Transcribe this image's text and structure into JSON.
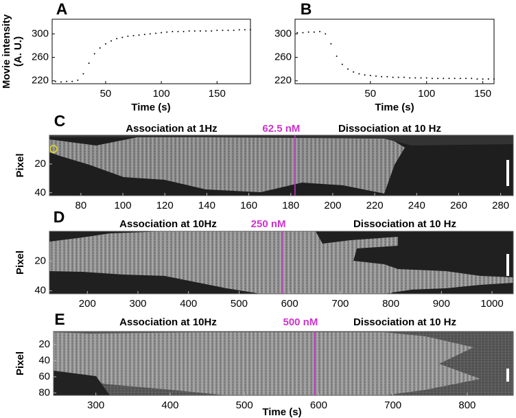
{
  "chart_data": [
    {
      "type": "scatter",
      "label": "A",
      "ylabel": [
        "Movie intensity",
        "(A. U.)"
      ],
      "xlabel": "Time (s)",
      "color": "#000000",
      "xlim": [
        2,
        180
      ],
      "ylim": [
        215,
        325
      ],
      "xticks": [
        50,
        100,
        150
      ],
      "yticks": [
        220,
        260,
        300
      ],
      "x": [
        5,
        10,
        15,
        20,
        25,
        30,
        35,
        40,
        45,
        50,
        55,
        60,
        65,
        70,
        75,
        80,
        85,
        90,
        95,
        100,
        105,
        110,
        115,
        120,
        125,
        130,
        135,
        140,
        145,
        150,
        155,
        160,
        165,
        170,
        175,
        180
      ],
      "values": [
        219,
        218,
        219,
        219,
        221,
        232,
        250,
        266,
        276,
        283,
        288,
        292,
        294,
        296,
        297,
        298,
        299,
        300,
        301,
        302,
        303,
        304,
        304,
        304,
        305,
        305,
        305,
        305,
        305,
        306,
        306,
        306,
        306,
        307,
        307,
        307
      ]
    },
    {
      "type": "scatter",
      "label": "B",
      "xlabel": "Time (s)",
      "color": "#000000",
      "xlim": [
        -17,
        160
      ],
      "ylim": [
        215,
        325
      ],
      "xticks": [
        50,
        100,
        150
      ],
      "yticks": [
        220,
        260,
        300
      ],
      "x": [
        -15,
        -10,
        -5,
        0,
        5,
        10,
        15,
        20,
        25,
        30,
        35,
        40,
        45,
        50,
        55,
        60,
        65,
        70,
        75,
        80,
        85,
        90,
        95,
        100,
        105,
        110,
        115,
        120,
        125,
        130,
        135,
        140,
        145,
        150,
        155,
        160
      ],
      "values": [
        302,
        302,
        303,
        303,
        304,
        300,
        283,
        262,
        248,
        240,
        235,
        232,
        230,
        229,
        228,
        227,
        227,
        226,
        226,
        226,
        225,
        225,
        225,
        225,
        224,
        224,
        224,
        224,
        224,
        224,
        224,
        224,
        223,
        223,
        223,
        223
      ]
    },
    {
      "type": "kymograph",
      "label": "C",
      "ylabel": "Pixel",
      "association": "Association at 1Hz",
      "concentration": "62.5 nM",
      "dissociation": "Dissociation at 10 Hz",
      "marker_x": 182,
      "marker_color": "#cc33cc",
      "xlim": [
        65,
        286
      ],
      "ylim": [
        0,
        42
      ],
      "xticks": [
        80,
        100,
        120,
        140,
        160,
        180,
        200,
        220,
        240,
        260,
        280
      ],
      "yticks": [
        20,
        40
      ]
    },
    {
      "type": "kymograph",
      "label": "D",
      "ylabel": "Pixel",
      "association": "Association at 10Hz",
      "concentration": "250 nM",
      "dissociation": "Dissociation at 10 Hz",
      "marker_x": 585,
      "marker_color": "#cc33cc",
      "xlim": [
        125,
        1042
      ],
      "ylim": [
        0,
        42
      ],
      "xticks": [
        200,
        300,
        400,
        500,
        600,
        700,
        800,
        900,
        1000
      ],
      "yticks": [
        20,
        40
      ]
    },
    {
      "type": "kymograph",
      "label": "E",
      "ylabel": "Pixel",
      "xlabel": "Time (s)",
      "association": "Association at 10Hz",
      "concentration": "500 nM",
      "dissociation": "Dissociation at 10 Hz",
      "marker_x": 594,
      "marker_color": "#cc33cc",
      "xlim": [
        243,
        862
      ],
      "ylim": [
        4,
        83
      ],
      "xticks": [
        300,
        400,
        500,
        600,
        700,
        800
      ],
      "yticks": [
        20,
        40,
        60,
        80
      ]
    }
  ]
}
